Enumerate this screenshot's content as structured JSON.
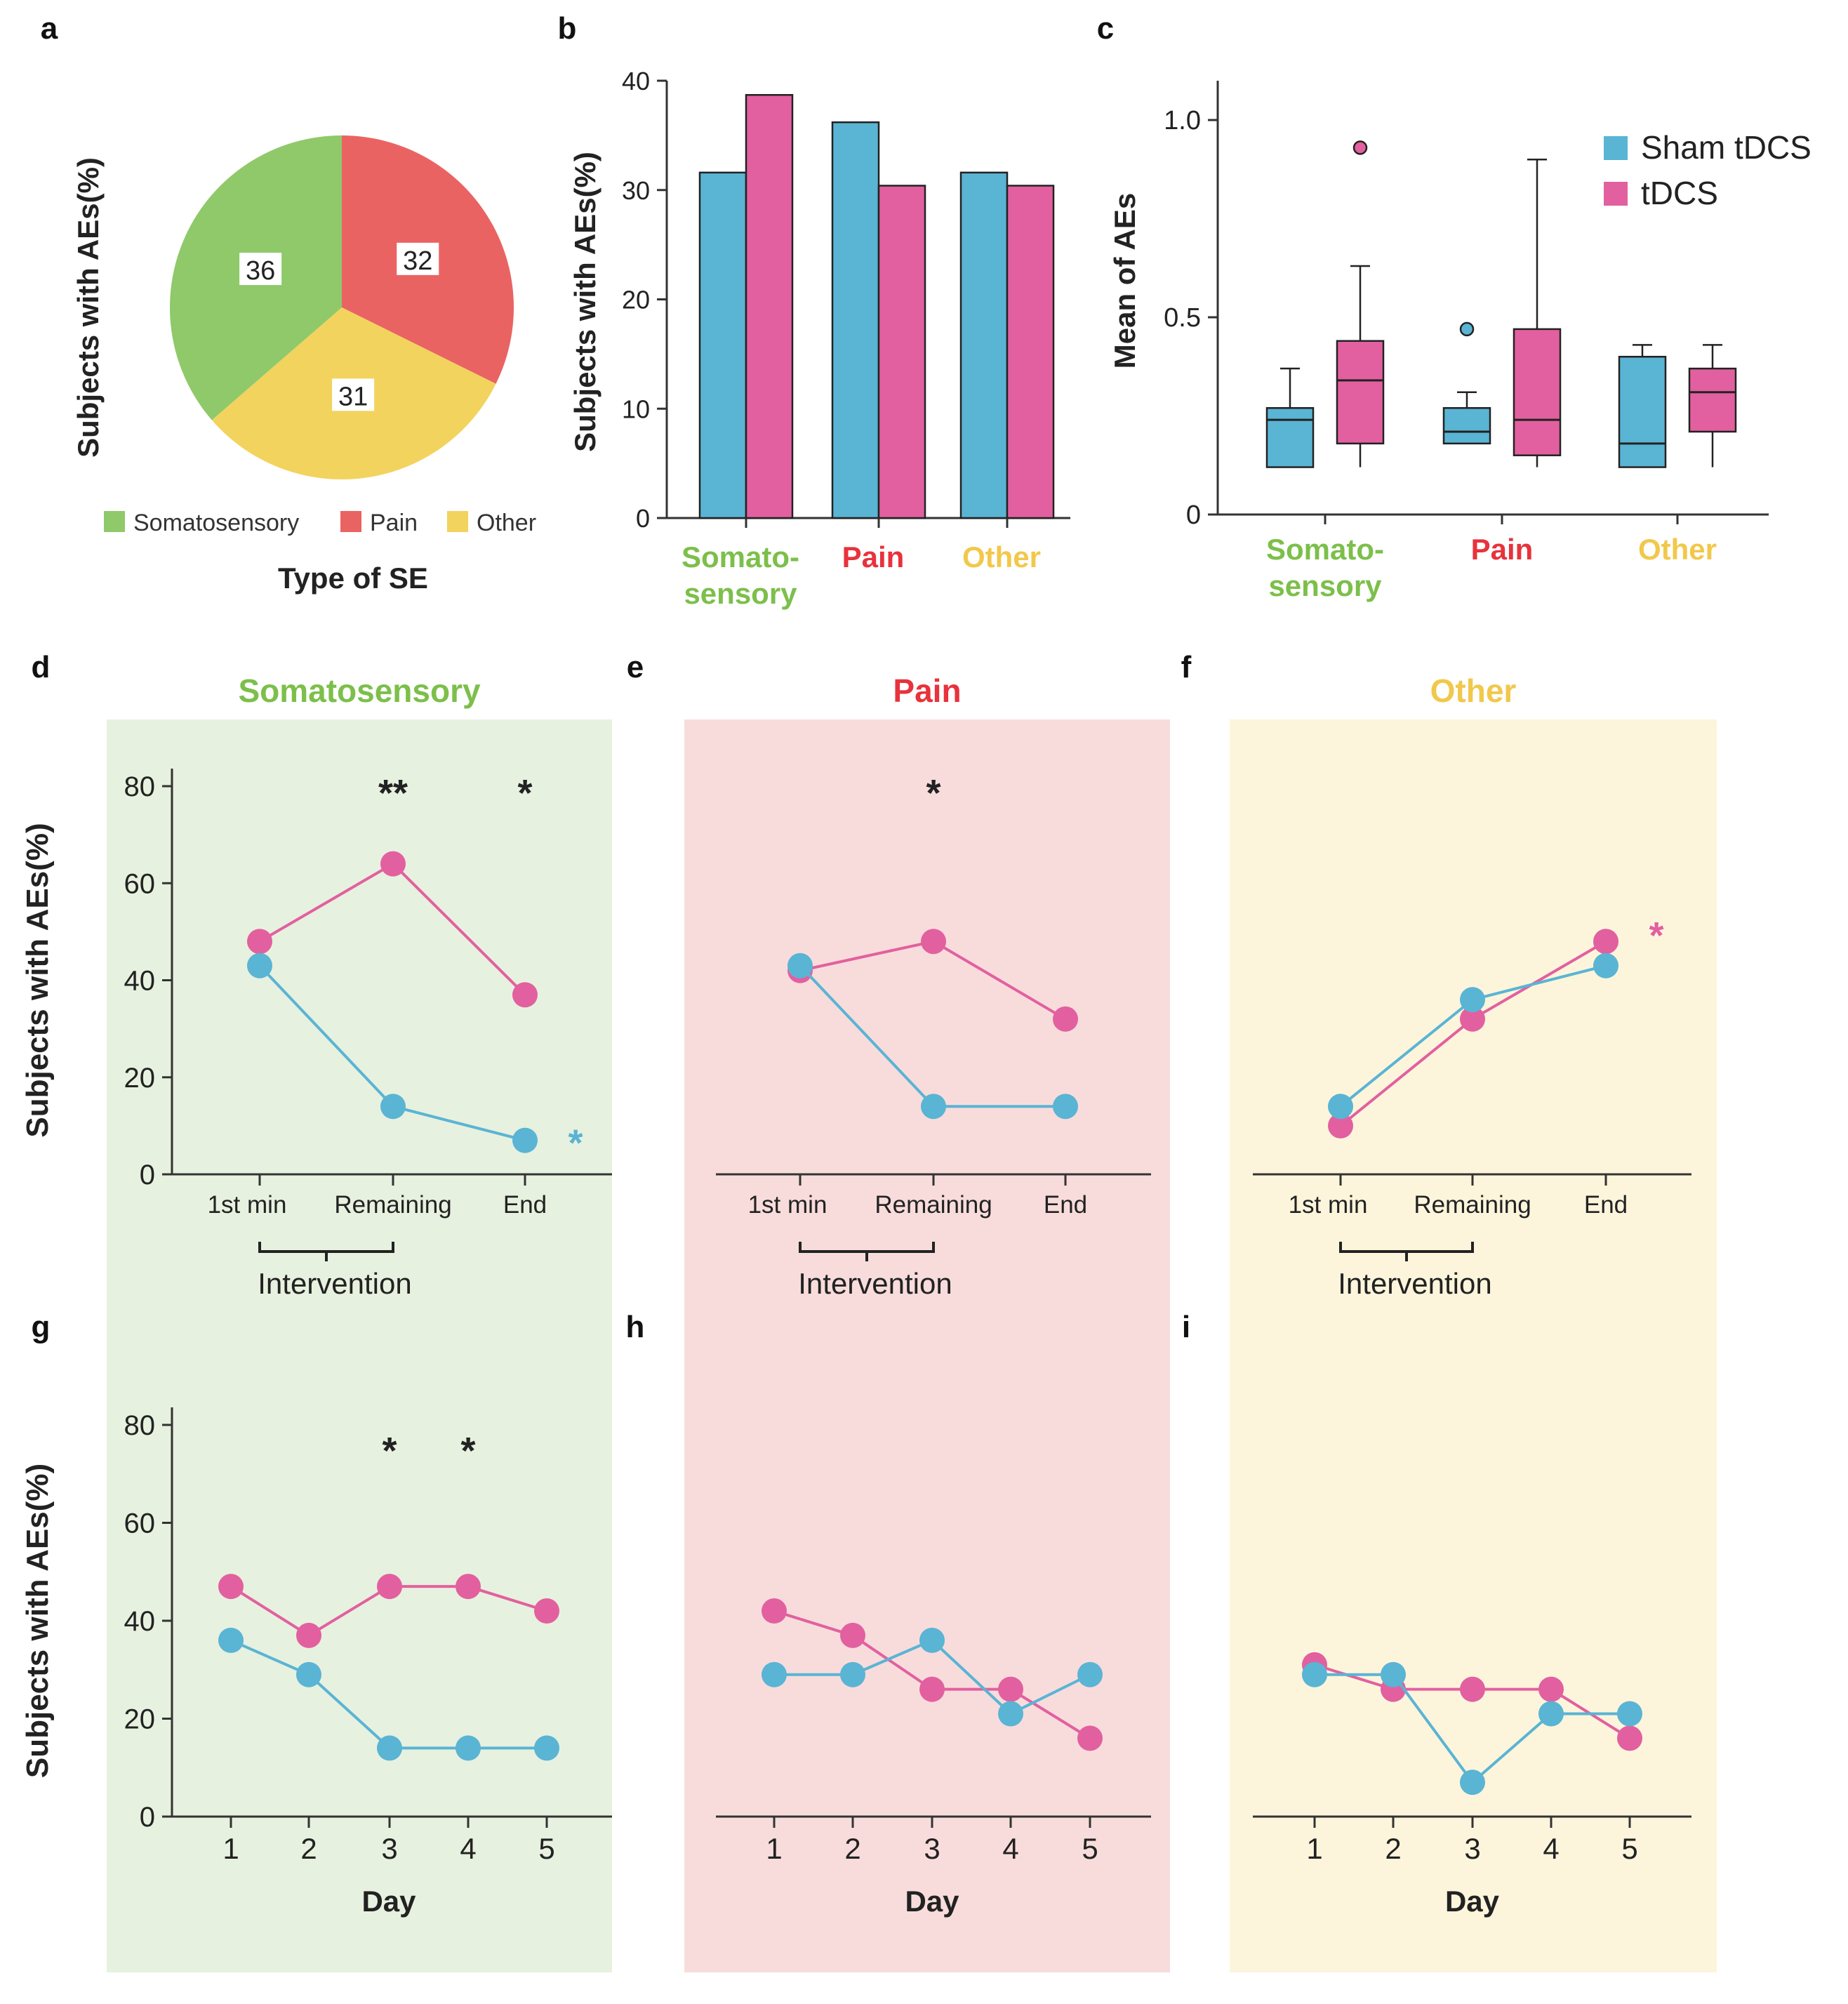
{
  "colors": {
    "sham": "#5ab4d4",
    "tdcs": "#e2609f",
    "soma": "#8fc96a",
    "pain": "#ea6363",
    "other": "#f2d35e",
    "soma_text": "#7cbf4a",
    "pain_text": "#e8323c",
    "other_text": "#f2c84b",
    "bg_soma": "#e7f1df",
    "bg_pain": "#f8dcdc",
    "bg_other": "#fcf5dc"
  },
  "chart_data": [
    {
      "panel": "a",
      "type": "pie",
      "ylabel": "Subjects with AEs(%)",
      "xlabel": "Type of SE",
      "slices": [
        {
          "label": "Somatosensory",
          "value": 36,
          "color_key": "soma"
        },
        {
          "label": "Pain",
          "value": 32,
          "color_key": "pain"
        },
        {
          "label": "Other",
          "value": 31,
          "color_key": "other"
        }
      ],
      "legend": [
        "Somatosensory",
        "Pain",
        "Other"
      ]
    },
    {
      "panel": "b",
      "type": "bar",
      "ylabel": "Subjects with AEs(%)",
      "ylim": [
        0,
        40
      ],
      "yticks": [
        "0",
        "10",
        "20",
        "30",
        "40"
      ],
      "categories": [
        "Somato-\nsensory",
        "Pain",
        "Other"
      ],
      "series": [
        {
          "name": "Sham tDCS",
          "values": [
            31.6,
            36.2,
            31.6
          ]
        },
        {
          "name": "tDCS",
          "values": [
            38.7,
            30.4,
            30.4
          ]
        }
      ]
    },
    {
      "panel": "c",
      "type": "box",
      "ylabel": "Mean of AEs",
      "ylim": [
        0,
        1.05
      ],
      "yticks": [
        "0",
        "0.5",
        "1.0"
      ],
      "categories": [
        "Somato-\nsensory",
        "Pain",
        "Other"
      ],
      "legend": [
        "Sham tDCS",
        "tDCS"
      ],
      "boxes": [
        {
          "series": "Sham tDCS",
          "category": 0,
          "min": 0.12,
          "q1": 0.12,
          "median": 0.24,
          "q3": 0.27,
          "max": 0.37,
          "outliers": []
        },
        {
          "series": "tDCS",
          "category": 0,
          "min": 0.12,
          "q1": 0.18,
          "median": 0.34,
          "q3": 0.44,
          "max": 0.63,
          "outliers": [
            0.93
          ]
        },
        {
          "series": "Sham tDCS",
          "category": 1,
          "min": 0.18,
          "q1": 0.18,
          "median": 0.21,
          "q3": 0.27,
          "max": 0.31,
          "outliers": [
            0.47
          ]
        },
        {
          "series": "tDCS",
          "category": 1,
          "min": 0.12,
          "q1": 0.15,
          "median": 0.24,
          "q3": 0.47,
          "max": 0.9,
          "outliers": []
        },
        {
          "series": "Sham tDCS",
          "category": 2,
          "min": 0.12,
          "q1": 0.12,
          "median": 0.18,
          "q3": 0.4,
          "max": 0.43,
          "outliers": []
        },
        {
          "series": "tDCS",
          "category": 2,
          "min": 0.12,
          "q1": 0.21,
          "median": 0.31,
          "q3": 0.37,
          "max": 0.43,
          "outliers": []
        }
      ]
    },
    {
      "panel": "d",
      "title": "Somatosensory",
      "title_color_key": "soma_text",
      "bg_key": "bg_soma",
      "type": "line",
      "ylabel": "Subjects with AEs(%)",
      "ylim": [
        0,
        80
      ],
      "show_yaxis": true,
      "x": [
        "1st min",
        "Remaining",
        "End"
      ],
      "bracket_label": "Intervention",
      "series": [
        {
          "name": "tDCS",
          "values": [
            48,
            64,
            37
          ]
        },
        {
          "name": "Sham tDCS",
          "values": [
            43,
            14,
            7
          ]
        }
      ],
      "annotations": [
        {
          "text": "**",
          "x_index": 1,
          "color": "black"
        },
        {
          "text": "*",
          "x_index": 2,
          "color": "black"
        },
        {
          "text": "*",
          "side": "right",
          "value": 7,
          "series": "Sham tDCS"
        }
      ]
    },
    {
      "panel": "e",
      "title": "Pain",
      "title_color_key": "pain_text",
      "bg_key": "bg_pain",
      "type": "line",
      "ylim": [
        0,
        80
      ],
      "show_yaxis": false,
      "x": [
        "1st min",
        "Remaining",
        "End"
      ],
      "bracket_label": "Intervention",
      "series": [
        {
          "name": "tDCS",
          "values": [
            42,
            48,
            32
          ]
        },
        {
          "name": "Sham tDCS",
          "values": [
            43,
            14,
            14
          ]
        }
      ],
      "annotations": [
        {
          "text": "*",
          "x_index": 1,
          "color": "black"
        }
      ]
    },
    {
      "panel": "f",
      "title": "Other",
      "title_color_key": "other_text",
      "bg_key": "bg_other",
      "type": "line",
      "ylim": [
        0,
        80
      ],
      "show_yaxis": false,
      "x": [
        "1st min",
        "Remaining",
        "End"
      ],
      "bracket_label": "Intervention",
      "series": [
        {
          "name": "tDCS",
          "values": [
            10,
            32,
            48
          ]
        },
        {
          "name": "Sham tDCS",
          "values": [
            14,
            36,
            43
          ]
        }
      ],
      "annotations": [
        {
          "text": "*",
          "side": "right",
          "value": 48,
          "series": "tDCS"
        }
      ]
    },
    {
      "panel": "g",
      "bg_key": "bg_soma",
      "type": "line",
      "ylabel": "Subjects with AEs(%)",
      "ylim": [
        0,
        80
      ],
      "show_yaxis": true,
      "x": [
        "1",
        "2",
        "3",
        "4",
        "5"
      ],
      "xlabel": "Day",
      "series": [
        {
          "name": "tDCS",
          "values": [
            47,
            37,
            47,
            47,
            42
          ]
        },
        {
          "name": "Sham tDCS",
          "values": [
            36,
            29,
            14,
            14,
            14
          ]
        }
      ],
      "annotations": [
        {
          "text": "*",
          "x_index": 2,
          "color": "black"
        },
        {
          "text": "*",
          "x_index": 3,
          "color": "black"
        }
      ]
    },
    {
      "panel": "h",
      "bg_key": "bg_pain",
      "type": "line",
      "ylim": [
        0,
        80
      ],
      "show_yaxis": false,
      "x": [
        "1",
        "2",
        "3",
        "4",
        "5"
      ],
      "xlabel": "Day",
      "series": [
        {
          "name": "tDCS",
          "values": [
            42,
            37,
            26,
            26,
            16
          ]
        },
        {
          "name": "Sham tDCS",
          "values": [
            29,
            29,
            36,
            21,
            29
          ]
        }
      ],
      "annotations": []
    },
    {
      "panel": "i",
      "bg_key": "bg_other",
      "type": "line",
      "ylim": [
        0,
        80
      ],
      "show_yaxis": false,
      "x": [
        "1",
        "2",
        "3",
        "4",
        "5"
      ],
      "xlabel": "Day",
      "series": [
        {
          "name": "tDCS",
          "values": [
            31,
            26,
            26,
            26,
            16
          ]
        },
        {
          "name": "Sham tDCS",
          "values": [
            29,
            29,
            7,
            21,
            21
          ]
        }
      ],
      "annotations": []
    }
  ]
}
